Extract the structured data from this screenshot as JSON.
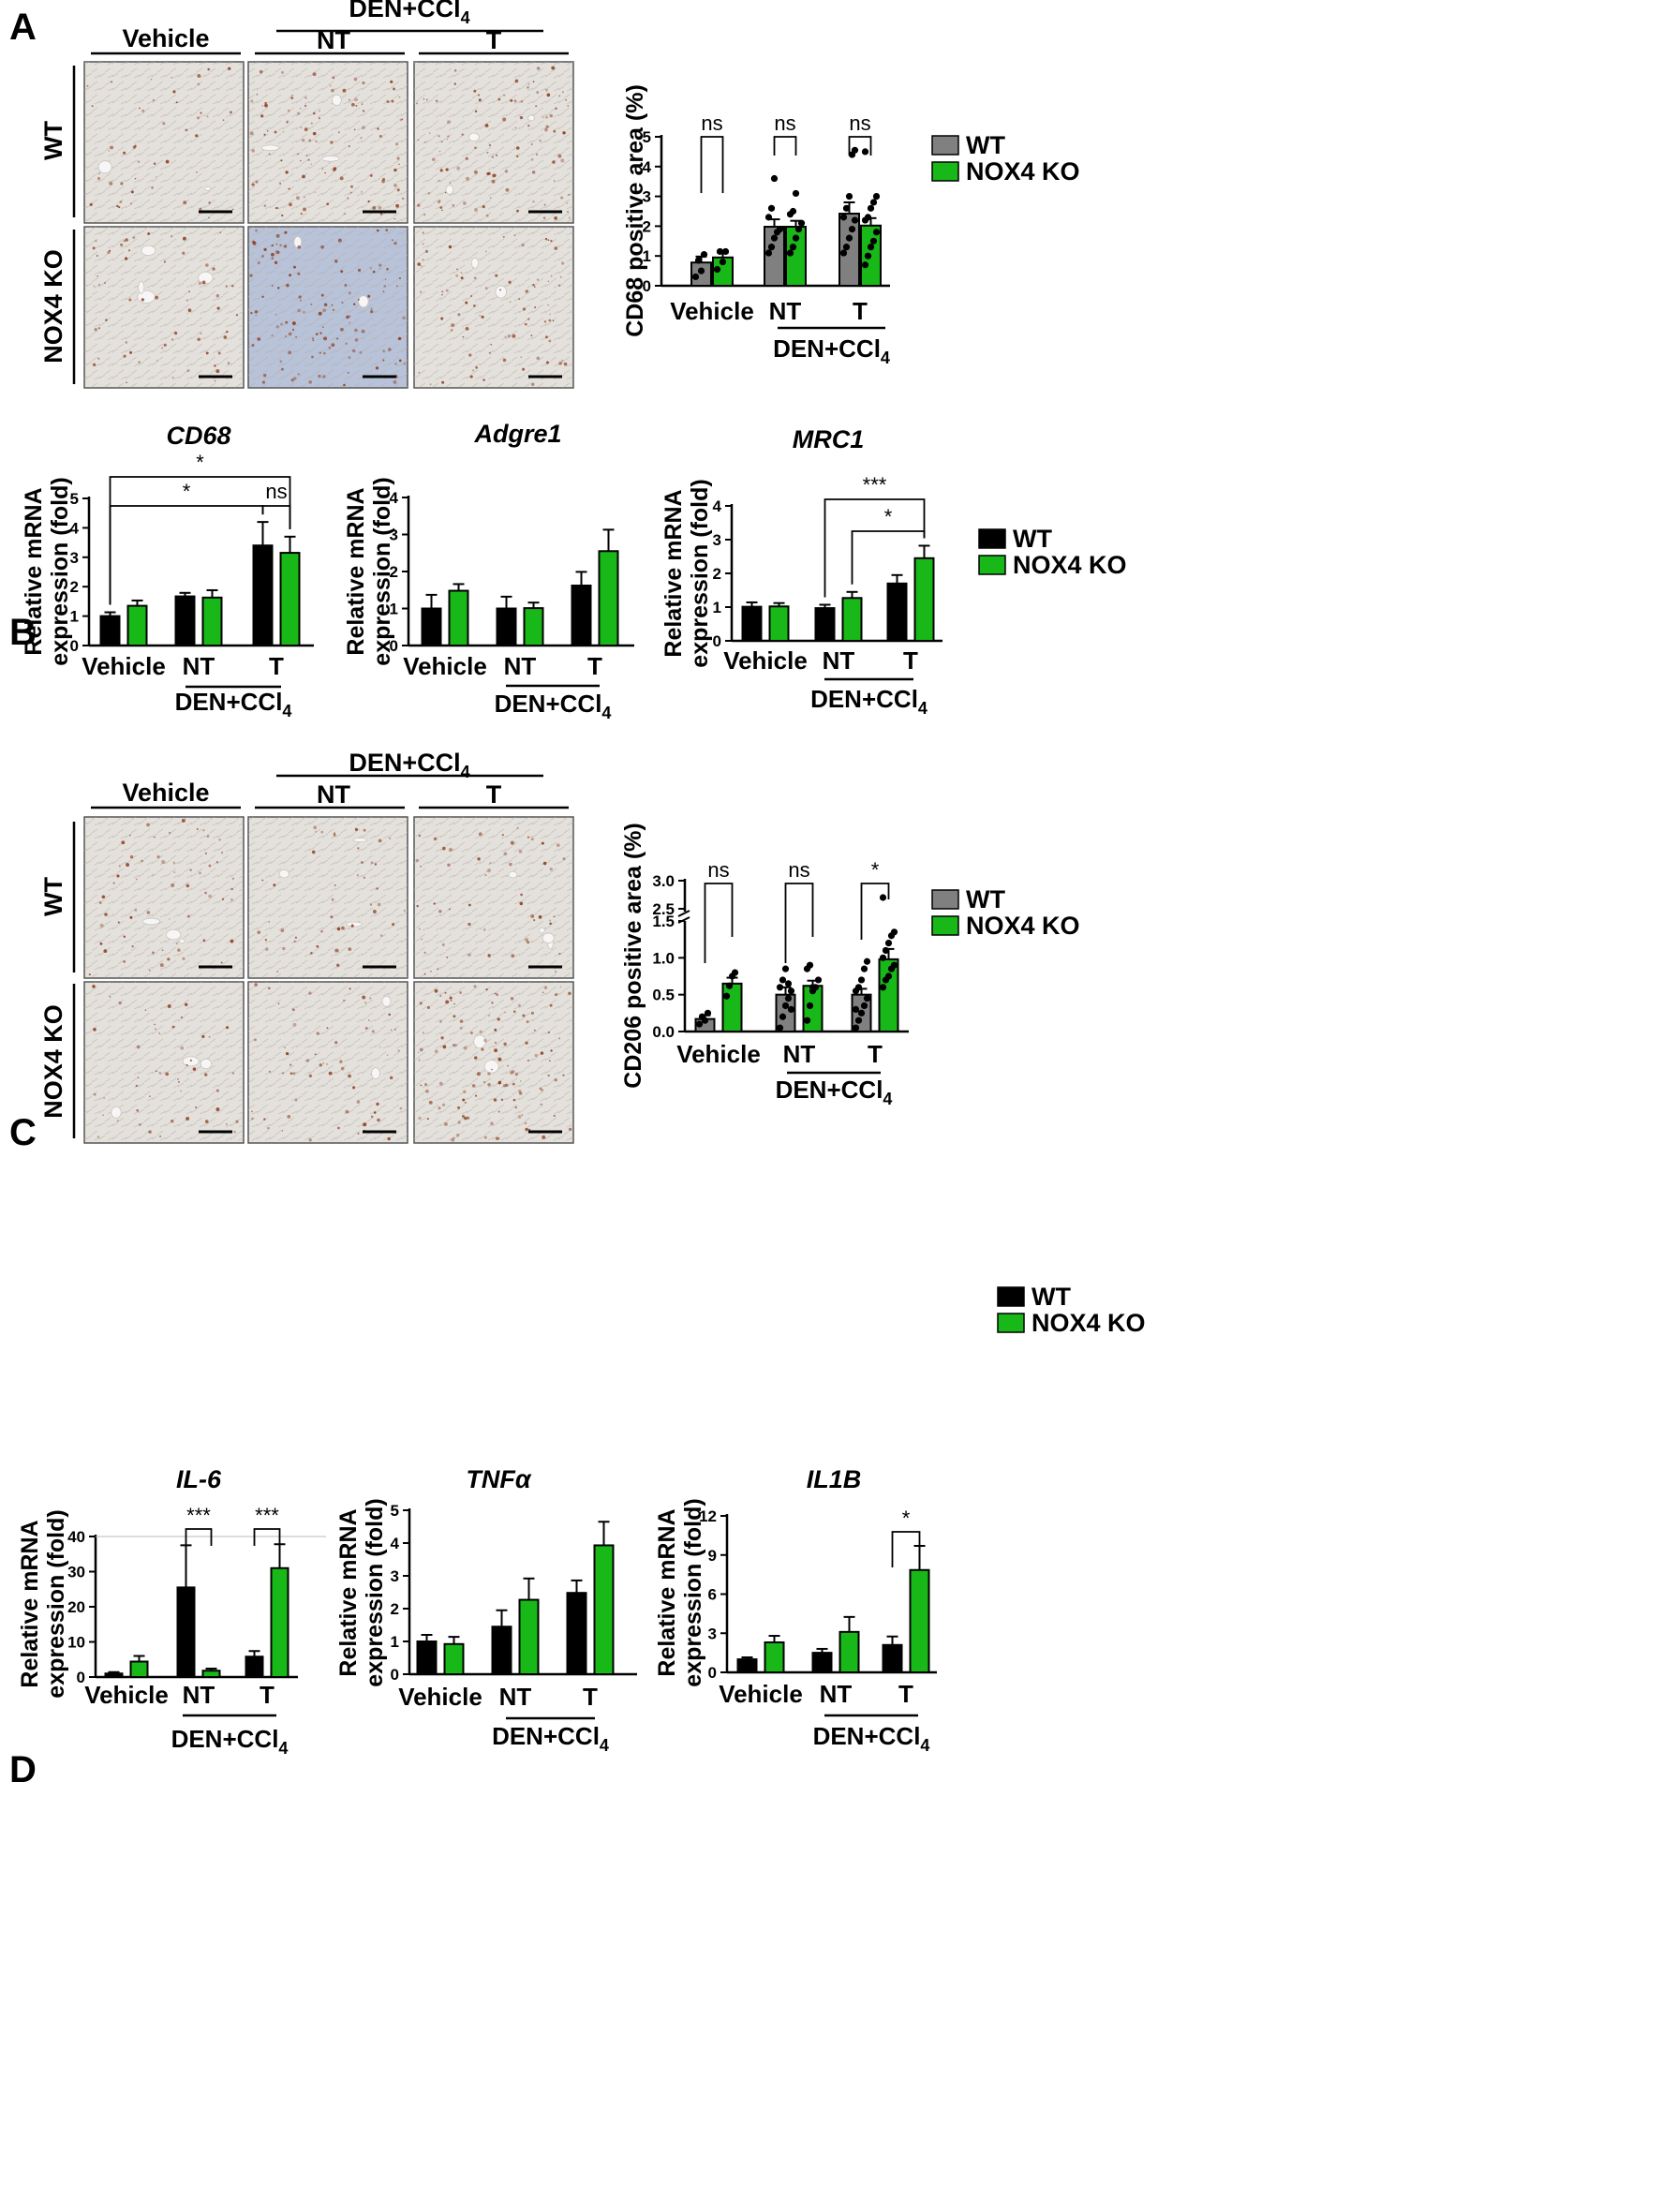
{
  "panels": {
    "A": "A",
    "B": "B",
    "C": "C",
    "D": "D"
  },
  "labels": {
    "treatment": "DEN+CCl",
    "treatment_sub": "4",
    "vehicle": "Vehicle",
    "nt": "NT",
    "t": "T",
    "wt": "WT",
    "ko": "NOX4 KO"
  },
  "colors": {
    "wt_gray": "#808080",
    "wt_black": "#000000",
    "ko_green": "#19b819",
    "stain_brown": "#8b3a1a",
    "tissue_bg": "#e4e1dc",
    "tissue_blue": "#b8c3d9"
  },
  "micrographs": {
    "A": {
      "images": [
        {
          "row": "WT",
          "col": "Vehicle",
          "density": 0.35,
          "tint": "light"
        },
        {
          "row": "WT",
          "col": "NT",
          "density": 0.8,
          "tint": "light"
        },
        {
          "row": "WT",
          "col": "T",
          "density": 0.8,
          "tint": "light"
        },
        {
          "row": "NOX4 KO",
          "col": "Vehicle",
          "density": 0.45,
          "tint": "light"
        },
        {
          "row": "NOX4 KO",
          "col": "NT",
          "density": 0.9,
          "tint": "blue"
        },
        {
          "row": "NOX4 KO",
          "col": "T",
          "density": 0.6,
          "tint": "light"
        }
      ]
    },
    "C": {
      "images": [
        {
          "row": "WT",
          "col": "Vehicle",
          "density": 0.45,
          "tint": "light"
        },
        {
          "row": "WT",
          "col": "NT",
          "density": 0.35,
          "tint": "light"
        },
        {
          "row": "WT",
          "col": "T",
          "density": 0.4,
          "tint": "light"
        },
        {
          "row": "NOX4 KO",
          "col": "Vehicle",
          "density": 0.35,
          "tint": "light"
        },
        {
          "row": "NOX4 KO",
          "col": "NT",
          "density": 0.45,
          "tint": "light"
        },
        {
          "row": "NOX4 KO",
          "col": "T",
          "density": 0.9,
          "tint": "light"
        }
      ]
    }
  },
  "chart_data": [
    {
      "id": "A_cd68_area",
      "type": "bar",
      "title": "",
      "ylabel": "CD68 positive area (%)",
      "ylim": [
        0,
        5
      ],
      "yticks": [
        "0",
        "1",
        "2",
        "3",
        "4",
        "5"
      ],
      "categories": [
        "Vehicle",
        "NT",
        "T"
      ],
      "group_label": "DEN+CCl",
      "series": [
        {
          "name": "WT",
          "color": "#808080",
          "values": [
            0.78,
            1.98,
            2.42
          ],
          "err": [
            0.2,
            0.25,
            0.38
          ],
          "points": [
            [
              0.3,
              0.85,
              0.5,
              1.05
            ],
            [
              1.1,
              1.3,
              1.6,
              1.8,
              1.9,
              2.3,
              2.6,
              3.6
            ],
            [
              1.1,
              1.3,
              1.6,
              1.9,
              2.2,
              2.3,
              2.6,
              3.0,
              4.4,
              4.55
            ]
          ]
        },
        {
          "name": "NOX4 KO",
          "color": "#19b819",
          "values": [
            0.95,
            1.98,
            2.02
          ],
          "err": [
            0.15,
            0.2,
            0.25
          ],
          "points": [
            [
              0.55,
              1.15,
              0.8,
              1.15
            ],
            [
              1.1,
              1.3,
              1.6,
              1.9,
              2.1,
              2.4,
              2.5,
              3.1
            ],
            [
              0.7,
              1.0,
              1.3,
              1.5,
              1.8,
              2.2,
              2.3,
              2.6,
              2.8,
              3.0,
              4.5
            ]
          ]
        }
      ],
      "significance": [
        {
          "group": 0,
          "label": "ns"
        },
        {
          "group": 1,
          "label": "ns"
        },
        {
          "group": 2,
          "label": "ns"
        }
      ],
      "legend": "right"
    },
    {
      "id": "B_cd68",
      "type": "bar",
      "title": "CD68",
      "ylabel": "Relative mRNA expression (fold)",
      "ylim": [
        0,
        5
      ],
      "yticks": [
        "0",
        "1",
        "2",
        "3",
        "4",
        "5"
      ],
      "categories": [
        "Vehicle",
        "NT",
        "T"
      ],
      "group_label": "DEN+CCl",
      "series": [
        {
          "name": "WT",
          "color": "#000000",
          "values": [
            1.0,
            1.67,
            3.4
          ],
          "err": [
            0.13,
            0.12,
            0.8
          ]
        },
        {
          "name": "NOX4 KO",
          "color": "#19b819",
          "values": [
            1.35,
            1.63,
            3.15
          ],
          "err": [
            0.18,
            0.25,
            0.55
          ]
        }
      ],
      "significance": [
        {
          "from": "Vehicle WT",
          "to": "T NOX4 KO",
          "label": "*"
        },
        {
          "from": "Vehicle WT",
          "to": "T WT",
          "label": "*"
        },
        {
          "from": "T WT",
          "to": "T NOX4 KO",
          "label": "ns"
        }
      ]
    },
    {
      "id": "B_adgre1",
      "type": "bar",
      "title": "Adgre1",
      "ylabel": "Relative mRNA expression (fold)",
      "ylim": [
        0,
        4
      ],
      "yticks": [
        "0",
        "1",
        "2",
        "3",
        "4"
      ],
      "categories": [
        "Vehicle",
        "NT",
        "T"
      ],
      "group_label": "DEN+CCl",
      "series": [
        {
          "name": "WT",
          "color": "#000000",
          "values": [
            1.0,
            1.0,
            1.62
          ],
          "err": [
            0.37,
            0.32,
            0.37
          ]
        },
        {
          "name": "NOX4 KO",
          "color": "#19b819",
          "values": [
            1.48,
            1.01,
            2.55
          ],
          "err": [
            0.18,
            0.15,
            0.58
          ]
        }
      ]
    },
    {
      "id": "B_mrc1",
      "type": "bar",
      "title": "MRC1",
      "ylabel": "Relative mRNA expression (fold)",
      "ylim": [
        0,
        4
      ],
      "yticks": [
        "0",
        "1",
        "2",
        "3",
        "4"
      ],
      "categories": [
        "Vehicle",
        "NT",
        "T"
      ],
      "group_label": "DEN+CCl",
      "series": [
        {
          "name": "WT",
          "color": "#000000",
          "values": [
            1.01,
            0.97,
            1.7
          ],
          "err": [
            0.13,
            0.1,
            0.25
          ]
        },
        {
          "name": "NOX4 KO",
          "color": "#19b819",
          "values": [
            1.02,
            1.27,
            2.45
          ],
          "err": [
            0.1,
            0.18,
            0.37
          ]
        }
      ],
      "significance": [
        {
          "from": "NT WT",
          "to": "T NOX4 KO",
          "label": "***"
        },
        {
          "from": "NT NOX4 KO",
          "to": "T NOX4 KO",
          "label": "*"
        }
      ],
      "legend": "right"
    },
    {
      "id": "C_cd206_area",
      "type": "bar",
      "title": "",
      "ylabel": "CD206 positive area (%)",
      "ylim": [
        0,
        3.0
      ],
      "yticks": [
        "0.0",
        "0.5",
        "1.0",
        "1.5",
        "2.5",
        "3.0"
      ],
      "axis_break": [
        1.5,
        2.5
      ],
      "categories": [
        "Vehicle",
        "NT",
        "T"
      ],
      "group_label": "DEN+CCl",
      "series": [
        {
          "name": "WT",
          "color": "#808080",
          "values": [
            0.17,
            0.5,
            0.5
          ],
          "err": [
            0.05,
            0.1,
            0.08
          ],
          "points": [
            [
              0.1,
              0.2,
              0.15,
              0.25
            ],
            [
              0.05,
              0.2,
              0.35,
              0.45,
              0.55,
              0.6,
              0.7,
              0.85,
              0.65,
              0.3
            ],
            [
              0.05,
              0.15,
              0.25,
              0.35,
              0.45,
              0.55,
              0.6,
              0.7,
              0.85,
              0.95,
              0.3
            ]
          ]
        },
        {
          "name": "NOX4 KO",
          "color": "#19b819",
          "values": [
            0.65,
            0.62,
            0.98
          ],
          "err": [
            0.08,
            0.07,
            0.14
          ],
          "points": [
            [
              0.48,
              0.62,
              0.75,
              0.8
            ],
            [
              0.15,
              0.35,
              0.55,
              0.6,
              0.7,
              0.85,
              0.9,
              0.6
            ],
            [
              0.6,
              0.7,
              0.75,
              0.85,
              0.9,
              1.0,
              1.1,
              1.2,
              1.3,
              1.35,
              2.7
            ]
          ]
        }
      ],
      "significance": [
        {
          "group": 0,
          "label": "ns"
        },
        {
          "group": 1,
          "label": "ns"
        },
        {
          "group": 2,
          "label": "*"
        }
      ],
      "legend": "right"
    },
    {
      "id": "D_il6",
      "type": "bar",
      "title": "IL-6",
      "ylabel": "Relative mRNA expression (fold)",
      "ylim": [
        0,
        40
      ],
      "yticks": [
        "0",
        "10",
        "20",
        "30",
        "40"
      ],
      "categories": [
        "Vehicle",
        "NT",
        "T"
      ],
      "group_label": "DEN+CCl",
      "series": [
        {
          "name": "WT",
          "color": "#000000",
          "values": [
            1.0,
            25.5,
            5.8
          ],
          "err": [
            0.4,
            12.0,
            1.6
          ]
        },
        {
          "name": "NOX4 KO",
          "color": "#19b819",
          "values": [
            4.4,
            1.8,
            31.0
          ],
          "err": [
            1.6,
            0.6,
            6.8
          ]
        }
      ],
      "significance": [
        {
          "group": 1,
          "label": "***"
        },
        {
          "group": 2,
          "label": "***"
        }
      ]
    },
    {
      "id": "D_tnfa",
      "type": "bar",
      "title": "TNFα",
      "ylabel": "Relative mRNA expression (fold)",
      "ylim": [
        0,
        5
      ],
      "yticks": [
        "0",
        "1",
        "2",
        "3",
        "4",
        "5"
      ],
      "categories": [
        "Vehicle",
        "NT",
        "T"
      ],
      "group_label": "DEN+CCl",
      "series": [
        {
          "name": "WT",
          "color": "#000000",
          "values": [
            1.0,
            1.45,
            2.48
          ],
          "err": [
            0.2,
            0.5,
            0.38
          ]
        },
        {
          "name": "NOX4 KO",
          "color": "#19b819",
          "values": [
            0.92,
            2.27,
            3.93
          ],
          "err": [
            0.22,
            0.65,
            0.72
          ]
        }
      ]
    },
    {
      "id": "D_il1b",
      "type": "bar",
      "title": "IL1B",
      "ylabel": "Relative mRNA expression (fold)",
      "ylim": [
        0,
        12
      ],
      "yticks": [
        "0",
        "3",
        "6",
        "9",
        "12"
      ],
      "categories": [
        "Vehicle",
        "NT",
        "T"
      ],
      "group_label": "DEN+CCl",
      "series": [
        {
          "name": "WT",
          "color": "#000000",
          "values": [
            1.0,
            1.5,
            2.1
          ],
          "err": [
            0.15,
            0.3,
            0.65
          ]
        },
        {
          "name": "NOX4 KO",
          "color": "#19b819",
          "values": [
            2.3,
            3.1,
            7.85
          ],
          "err": [
            0.5,
            1.15,
            1.85
          ]
        }
      ],
      "significance": [
        {
          "group": 2,
          "label": "*"
        }
      ],
      "legend": "right"
    }
  ]
}
